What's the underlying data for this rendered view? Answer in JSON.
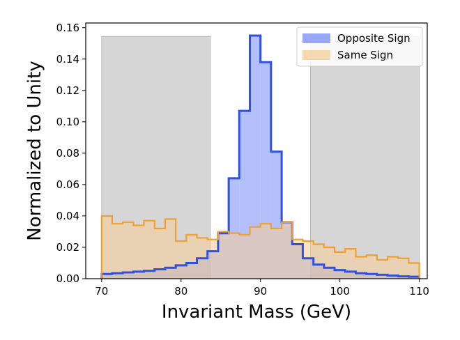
{
  "chart_data": {
    "type": "histogram",
    "xlabel": "Invariant Mass (GeV)",
    "ylabel": "Normalized to Unity",
    "xlim": [
      68,
      111
    ],
    "ylim": [
      0,
      0.163
    ],
    "x_ticks": [
      70,
      80,
      90,
      100,
      110
    ],
    "y_ticks": [
      0.0,
      0.02,
      0.04,
      0.06,
      0.08,
      0.1,
      0.12,
      0.14,
      0.16
    ],
    "bin_edges": [
      70,
      71.33,
      72.67,
      74,
      75.33,
      76.67,
      78,
      79.33,
      80.67,
      82,
      83.33,
      84.67,
      86,
      87.33,
      88.67,
      90,
      91.33,
      92.67,
      94,
      95.33,
      96.67,
      98,
      99.33,
      100.67,
      102,
      103.33,
      104.67,
      106,
      107.33,
      108.67,
      110
    ],
    "shaded_regions": [
      {
        "x0": 70,
        "x1": 83.7,
        "y_top": 0.1545
      },
      {
        "x0": 96.3,
        "x1": 110,
        "y_top": 0.1545
      }
    ],
    "series": [
      {
        "name": "Opposite Sign",
        "color": "#3050e0",
        "fill": "#7f94f5",
        "values": [
          0.003,
          0.0035,
          0.004,
          0.0045,
          0.005,
          0.006,
          0.007,
          0.0085,
          0.01,
          0.013,
          0.0175,
          0.029,
          0.064,
          0.107,
          0.155,
          0.138,
          0.081,
          0.036,
          0.022,
          0.013,
          0.009,
          0.007,
          0.0055,
          0.0045,
          0.0035,
          0.003,
          0.0025,
          0.002,
          0.0015,
          0.0013
        ]
      },
      {
        "name": "Same Sign",
        "color": "#f0a030",
        "fill": "#f5cf9c",
        "values": [
          0.04,
          0.035,
          0.036,
          0.034,
          0.037,
          0.032,
          0.038,
          0.024,
          0.028,
          0.026,
          0.025,
          0.03,
          0.029,
          0.028,
          0.033,
          0.035,
          0.032,
          0.036,
          0.025,
          0.024,
          0.022,
          0.02,
          0.017,
          0.019,
          0.014,
          0.015,
          0.012,
          0.014,
          0.013,
          0.01
        ]
      }
    ],
    "legend_position": "top-right"
  }
}
